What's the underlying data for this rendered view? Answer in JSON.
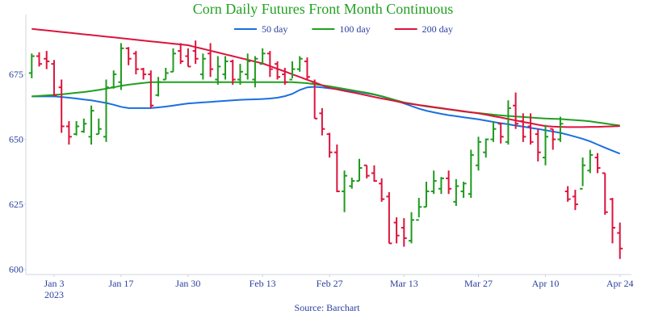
{
  "chart_data": {
    "type": "ohlc",
    "title": "Corn Daily Futures Front Month Continuous",
    "source": "Source: Barchart",
    "x": [
      "2022-12-28",
      "2022-12-29",
      "2022-12-30",
      "2023-01-03",
      "2023-01-04",
      "2023-01-05",
      "2023-01-06",
      "2023-01-09",
      "2023-01-10",
      "2023-01-11",
      "2023-01-12",
      "2023-01-13",
      "2023-01-17",
      "2023-01-18",
      "2023-01-19",
      "2023-01-20",
      "2023-01-23",
      "2023-01-24",
      "2023-01-25",
      "2023-01-26",
      "2023-01-27",
      "2023-01-30",
      "2023-01-31",
      "2023-02-01",
      "2023-02-02",
      "2023-02-03",
      "2023-02-06",
      "2023-02-07",
      "2023-02-08",
      "2023-02-09",
      "2023-02-10",
      "2023-02-13",
      "2023-02-14",
      "2023-02-15",
      "2023-02-16",
      "2023-02-17",
      "2023-02-21",
      "2023-02-22",
      "2023-02-23",
      "2023-02-24",
      "2023-02-27",
      "2023-02-28",
      "2023-03-01",
      "2023-03-02",
      "2023-03-03",
      "2023-03-06",
      "2023-03-07",
      "2023-03-08",
      "2023-03-09",
      "2023-03-10",
      "2023-03-13",
      "2023-03-14",
      "2023-03-15",
      "2023-03-16",
      "2023-03-17",
      "2023-03-20",
      "2023-03-21",
      "2023-03-22",
      "2023-03-23",
      "2023-03-24",
      "2023-03-27",
      "2023-03-28",
      "2023-03-29",
      "2023-03-30",
      "2023-03-31",
      "2023-04-03",
      "2023-04-04",
      "2023-04-05",
      "2023-04-06",
      "2023-04-10",
      "2023-04-11",
      "2023-04-12",
      "2023-04-13",
      "2023-04-14",
      "2023-04-17",
      "2023-04-18",
      "2023-04-19",
      "2023-04-20",
      "2023-04-21",
      "2023-04-24"
    ],
    "open": [
      675.5,
      682,
      681,
      679,
      670,
      655,
      652,
      653,
      651,
      652,
      651,
      670,
      672,
      685,
      683,
      677,
      675,
      667,
      673,
      676,
      684,
      682,
      684,
      675,
      683,
      673,
      675,
      680,
      673,
      675,
      673,
      679,
      683,
      679,
      675,
      673,
      677,
      680,
      672,
      660,
      652,
      645,
      630,
      632,
      634,
      640,
      637,
      633,
      628,
      618,
      616,
      611,
      619,
      624,
      630,
      631,
      635,
      626,
      630,
      629,
      640,
      645,
      650,
      656,
      649,
      663,
      657,
      655,
      652,
      643,
      654,
      650,
      630,
      628,
      631,
      638,
      643,
      637,
      627,
      614
    ],
    "high": [
      683,
      683.5,
      684,
      680.5,
      673,
      657,
      657,
      658,
      663,
      658,
      673,
      676.5,
      687,
      685.5,
      684,
      677.5,
      676.5,
      674,
      677.5,
      685,
      687,
      685,
      688,
      683,
      687,
      682,
      682,
      680.6,
      679,
      683,
      682,
      685,
      684,
      680,
      677.5,
      680,
      682,
      681.5,
      673,
      662,
      652.5,
      648,
      638,
      635.3,
      642.5,
      640,
      640,
      635,
      629.7,
      620,
      619.7,
      622,
      627.5,
      633.7,
      638,
      635.5,
      638,
      634.7,
      633.7,
      646,
      651,
      650.3,
      657,
      656.5,
      665,
      668,
      660,
      660,
      654,
      655.6,
      654,
      658.7,
      632,
      630.6,
      643,
      646,
      644.7,
      637,
      627.5,
      618
    ],
    "low": [
      673.5,
      678,
      677,
      666.5,
      652.5,
      648,
      651.5,
      652.5,
      648,
      652,
      649,
      669.5,
      669,
      678.5,
      675,
      673,
      662,
      666.5,
      673,
      676,
      679,
      678,
      679,
      673,
      674,
      671,
      673,
      671,
      671,
      673,
      670,
      679,
      674,
      673,
      671,
      673.5,
      676,
      673,
      658,
      651.5,
      643,
      629.7,
      622,
      631,
      634,
      635,
      633.7,
      626,
      610,
      610,
      608.7,
      610,
      620,
      624,
      629,
      629,
      629,
      624.4,
      627.5,
      627.5,
      638,
      643,
      649,
      648.4,
      648,
      654,
      649,
      648,
      641.5,
      640,
      646,
      649,
      626,
      622.8,
      632,
      637,
      637,
      621,
      610,
      604
    ],
    "close": [
      682,
      679,
      680,
      667,
      655,
      651,
      655,
      656,
      661,
      654,
      670,
      675,
      685,
      681,
      677,
      675,
      663,
      672,
      675.5,
      683,
      680,
      678,
      681,
      681,
      677,
      678,
      680,
      673,
      676,
      680,
      681,
      683,
      677,
      674,
      672,
      677,
      681,
      674,
      658,
      654,
      645,
      630,
      636,
      634,
      639,
      636,
      634,
      627,
      610,
      613,
      612,
      619,
      624,
      630,
      634,
      635,
      631,
      632,
      633,
      644,
      649,
      650,
      654,
      651,
      662,
      656,
      651,
      649,
      645,
      651,
      650,
      656,
      627,
      625,
      640,
      644,
      639,
      622,
      616,
      608
    ],
    "up_color": "#1f9a1f",
    "down_color": "#dc143c",
    "series": [
      {
        "name": "50 day",
        "color": "#1a6fe0",
        "values": [
          666.5,
          666.5,
          666.5,
          666.5,
          666.3,
          666,
          665.7,
          665.3,
          665,
          664.5,
          664,
          663.3,
          662.5,
          662,
          662,
          662,
          662,
          662.3,
          662.6,
          663,
          663.4,
          663.8,
          664,
          664.2,
          664.4,
          664.6,
          664.8,
          665,
          665.2,
          665.3,
          665.4,
          665.5,
          665.7,
          666,
          666.6,
          667.5,
          669,
          670,
          670.2,
          670,
          669.6,
          669.3,
          669,
          668.6,
          668.2,
          667.7,
          667.2,
          666.5,
          665.7,
          664.8,
          663.8,
          662.8,
          661.8,
          661,
          660.4,
          659.8,
          659.3,
          658.9,
          658.5,
          658.1,
          657.7,
          657.2,
          656.7,
          656.2,
          655.8,
          655.3,
          654.9,
          654.4,
          654,
          653.5,
          653,
          652.5,
          651.8,
          651,
          650.2,
          649.2,
          648,
          646.8,
          645.6,
          644.5
        ]
      },
      {
        "name": "100 day",
        "color": "#1fa01f",
        "values": [
          666.5,
          666.7,
          666.9,
          667.1,
          667.3,
          667.6,
          667.9,
          668.2,
          668.6,
          669,
          669.5,
          670,
          670.6,
          671,
          671.4,
          671.7,
          672,
          672,
          672,
          672,
          672,
          672,
          672,
          672,
          672,
          672,
          672,
          672,
          672,
          672,
          672,
          672,
          672,
          672,
          672,
          672,
          671.8,
          671.6,
          671.2,
          670.8,
          670.4,
          669.9,
          669.4,
          668.9,
          668.4,
          667.9,
          667.3,
          666.6,
          665.8,
          665,
          664.2,
          663.7,
          663.2,
          662.7,
          662.3,
          661.9,
          661.5,
          661.1,
          660.7,
          660.4,
          660.1,
          659.8,
          659.5,
          659.2,
          659,
          658.8,
          658.6,
          658.4,
          658.2,
          658,
          657.9,
          657.8,
          657.6,
          657.4,
          657.2,
          656.9,
          656.5,
          656.1,
          655.7,
          655.3
        ]
      },
      {
        "name": "200 day",
        "color": "#dc143c",
        "values": [
          692.5,
          692.2,
          691.9,
          691.6,
          691.3,
          691,
          690.7,
          690.4,
          690.1,
          689.8,
          689.5,
          689.2,
          688.9,
          688.6,
          688.3,
          688,
          687.7,
          687.4,
          687.1,
          686.8,
          686.5,
          686.2,
          685.5,
          684.8,
          684.1,
          683.4,
          682.7,
          682,
          681.3,
          680.6,
          679.9,
          679.2,
          678.2,
          677.1,
          676.1,
          675,
          674,
          672.9,
          671.9,
          670.8,
          669.8,
          669.2,
          668.6,
          668.1,
          667.5,
          666.9,
          666.3,
          665.7,
          665.2,
          664.6,
          664,
          663.6,
          663.2,
          662.8,
          662.4,
          662,
          661.6,
          661.2,
          660.8,
          660.4,
          660,
          659.5,
          658.9,
          658.4,
          657.8,
          657.3,
          656.7,
          656.2,
          655.6,
          655.1,
          654.9,
          654.8,
          654.7,
          654.7,
          654.7,
          654.8,
          654.8,
          654.9,
          655,
          655.1
        ]
      }
    ],
    "ylim": [
      598,
      698
    ],
    "yticks": [
      600,
      625,
      650,
      675
    ],
    "xticks": [
      {
        "value": "2023-01-03",
        "label": "Jan 3\n2023"
      },
      {
        "value": "2023-01-17",
        "label": "Jan 17"
      },
      {
        "value": "2023-01-30",
        "label": "Jan 30"
      },
      {
        "value": "2023-02-13",
        "label": "Feb 13"
      },
      {
        "value": "2023-02-27",
        "label": "Feb 27"
      },
      {
        "value": "2023-03-13",
        "label": "Mar 13"
      },
      {
        "value": "2023-03-27",
        "label": "Mar 27"
      },
      {
        "value": "2023-04-10",
        "label": "Apr 10"
      },
      {
        "value": "2023-04-24",
        "label": "Apr 24"
      }
    ],
    "grid": false,
    "legend": "top-right"
  }
}
